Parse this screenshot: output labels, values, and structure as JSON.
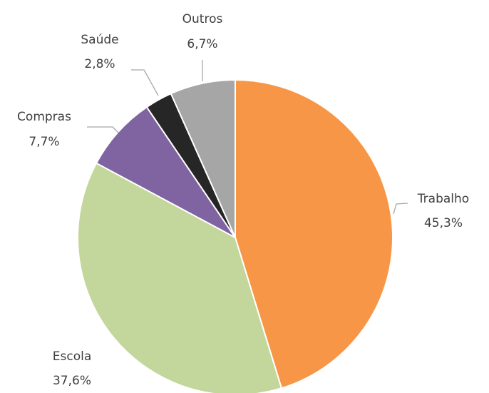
{
  "chart_data": {
    "type": "pie",
    "categories": [
      "Trabalho",
      "Escola",
      "Compras",
      "Saúde",
      "Outros"
    ],
    "values": [
      45.3,
      37.6,
      7.7,
      2.8,
      6.7
    ],
    "value_labels": [
      "45,3%",
      "37,6%",
      "7,7%",
      "2,8%",
      "6,7%"
    ],
    "colors": [
      "#f79646",
      "#c3d69b",
      "#8064a2",
      "#262626",
      "#a6a6a6"
    ]
  }
}
